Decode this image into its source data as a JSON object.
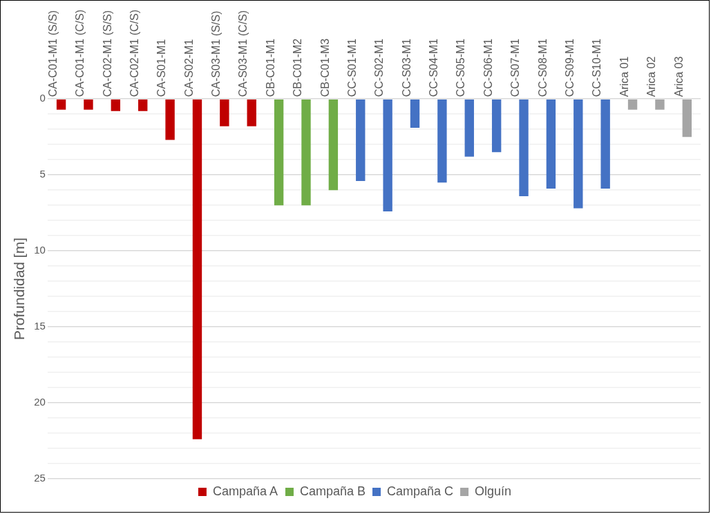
{
  "chart_data": {
    "type": "bar",
    "ylabel": "Profundidad [m]",
    "categories": [
      "CA-C01-M1 (S/S)",
      "CA-C01-M1 (C/S)",
      "CA-C02-M1 (S/S)",
      "CA-C02-M1 (C/S)",
      "CA-S01-M1",
      "CA-S02-M1",
      "CA-S03-M1 (S/S)",
      "CA-S03-M1 (C/S)",
      "CB-C01-M1",
      "CB-C01-M2",
      "CB-C01-M3",
      "CC-S01-M1",
      "CC-S02-M1",
      "CC-S03-M1",
      "CC-S04-M1",
      "CC-S05-M1",
      "CC-S06-M1",
      "CC-S07-M1",
      "CC-S08-M1",
      "CC-S09-M1",
      "CC-S10-M1",
      "Arica 01",
      "Arica 02",
      "Arica 03"
    ],
    "series": [
      {
        "name": "Campaña A",
        "color": "#c00000",
        "values": [
          0.7,
          0.7,
          0.8,
          0.8,
          2.7,
          22.4,
          1.8,
          1.8,
          null,
          null,
          null,
          null,
          null,
          null,
          null,
          null,
          null,
          null,
          null,
          null,
          null,
          null,
          null,
          null
        ]
      },
      {
        "name": "Campaña B",
        "color": "#70ad47",
        "values": [
          null,
          null,
          null,
          null,
          null,
          null,
          null,
          null,
          7.0,
          7.0,
          6.0,
          null,
          null,
          null,
          null,
          null,
          null,
          null,
          null,
          null,
          null,
          null,
          null,
          null
        ]
      },
      {
        "name": "Campaña C",
        "color": "#4472c4",
        "values": [
          null,
          null,
          null,
          null,
          null,
          null,
          null,
          null,
          null,
          null,
          null,
          5.4,
          7.4,
          1.9,
          5.5,
          3.8,
          3.5,
          6.4,
          5.9,
          7.2,
          5.9,
          null,
          null,
          null
        ]
      },
      {
        "name": "Olguín",
        "color": "#a5a5a5",
        "values": [
          null,
          null,
          null,
          null,
          null,
          null,
          null,
          null,
          null,
          null,
          null,
          null,
          null,
          null,
          null,
          null,
          null,
          null,
          null,
          null,
          null,
          0.7,
          0.7,
          2.5
        ]
      }
    ],
    "ylim": [
      25,
      0
    ],
    "yticks": [
      0,
      {
        "value": 1,
        "label": null
      },
      {
        "value": 2,
        "label": null
      },
      {
        "value": 3,
        "label": null
      },
      {
        "value": 4,
        "label": null
      },
      5,
      {
        "value": 6,
        "label": null
      },
      {
        "value": 7,
        "label": null
      },
      {
        "value": 8,
        "label": null
      },
      {
        "value": 9,
        "label": null
      },
      10,
      {
        "value": 11,
        "label": null
      },
      {
        "value": 12,
        "label": null
      },
      {
        "value": 13,
        "label": null
      },
      {
        "value": 14,
        "label": null
      },
      15,
      {
        "value": 16,
        "label": null
      },
      {
        "value": 17,
        "label": null
      },
      {
        "value": 18,
        "label": null
      },
      {
        "value": 19,
        "label": null
      },
      20,
      {
        "value": 21,
        "label": null
      },
      {
        "value": 22,
        "label": null
      },
      {
        "value": 23,
        "label": null
      },
      {
        "value": 24,
        "label": null
      },
      25
    ],
    "grid": "y",
    "legend": "bottom"
  }
}
